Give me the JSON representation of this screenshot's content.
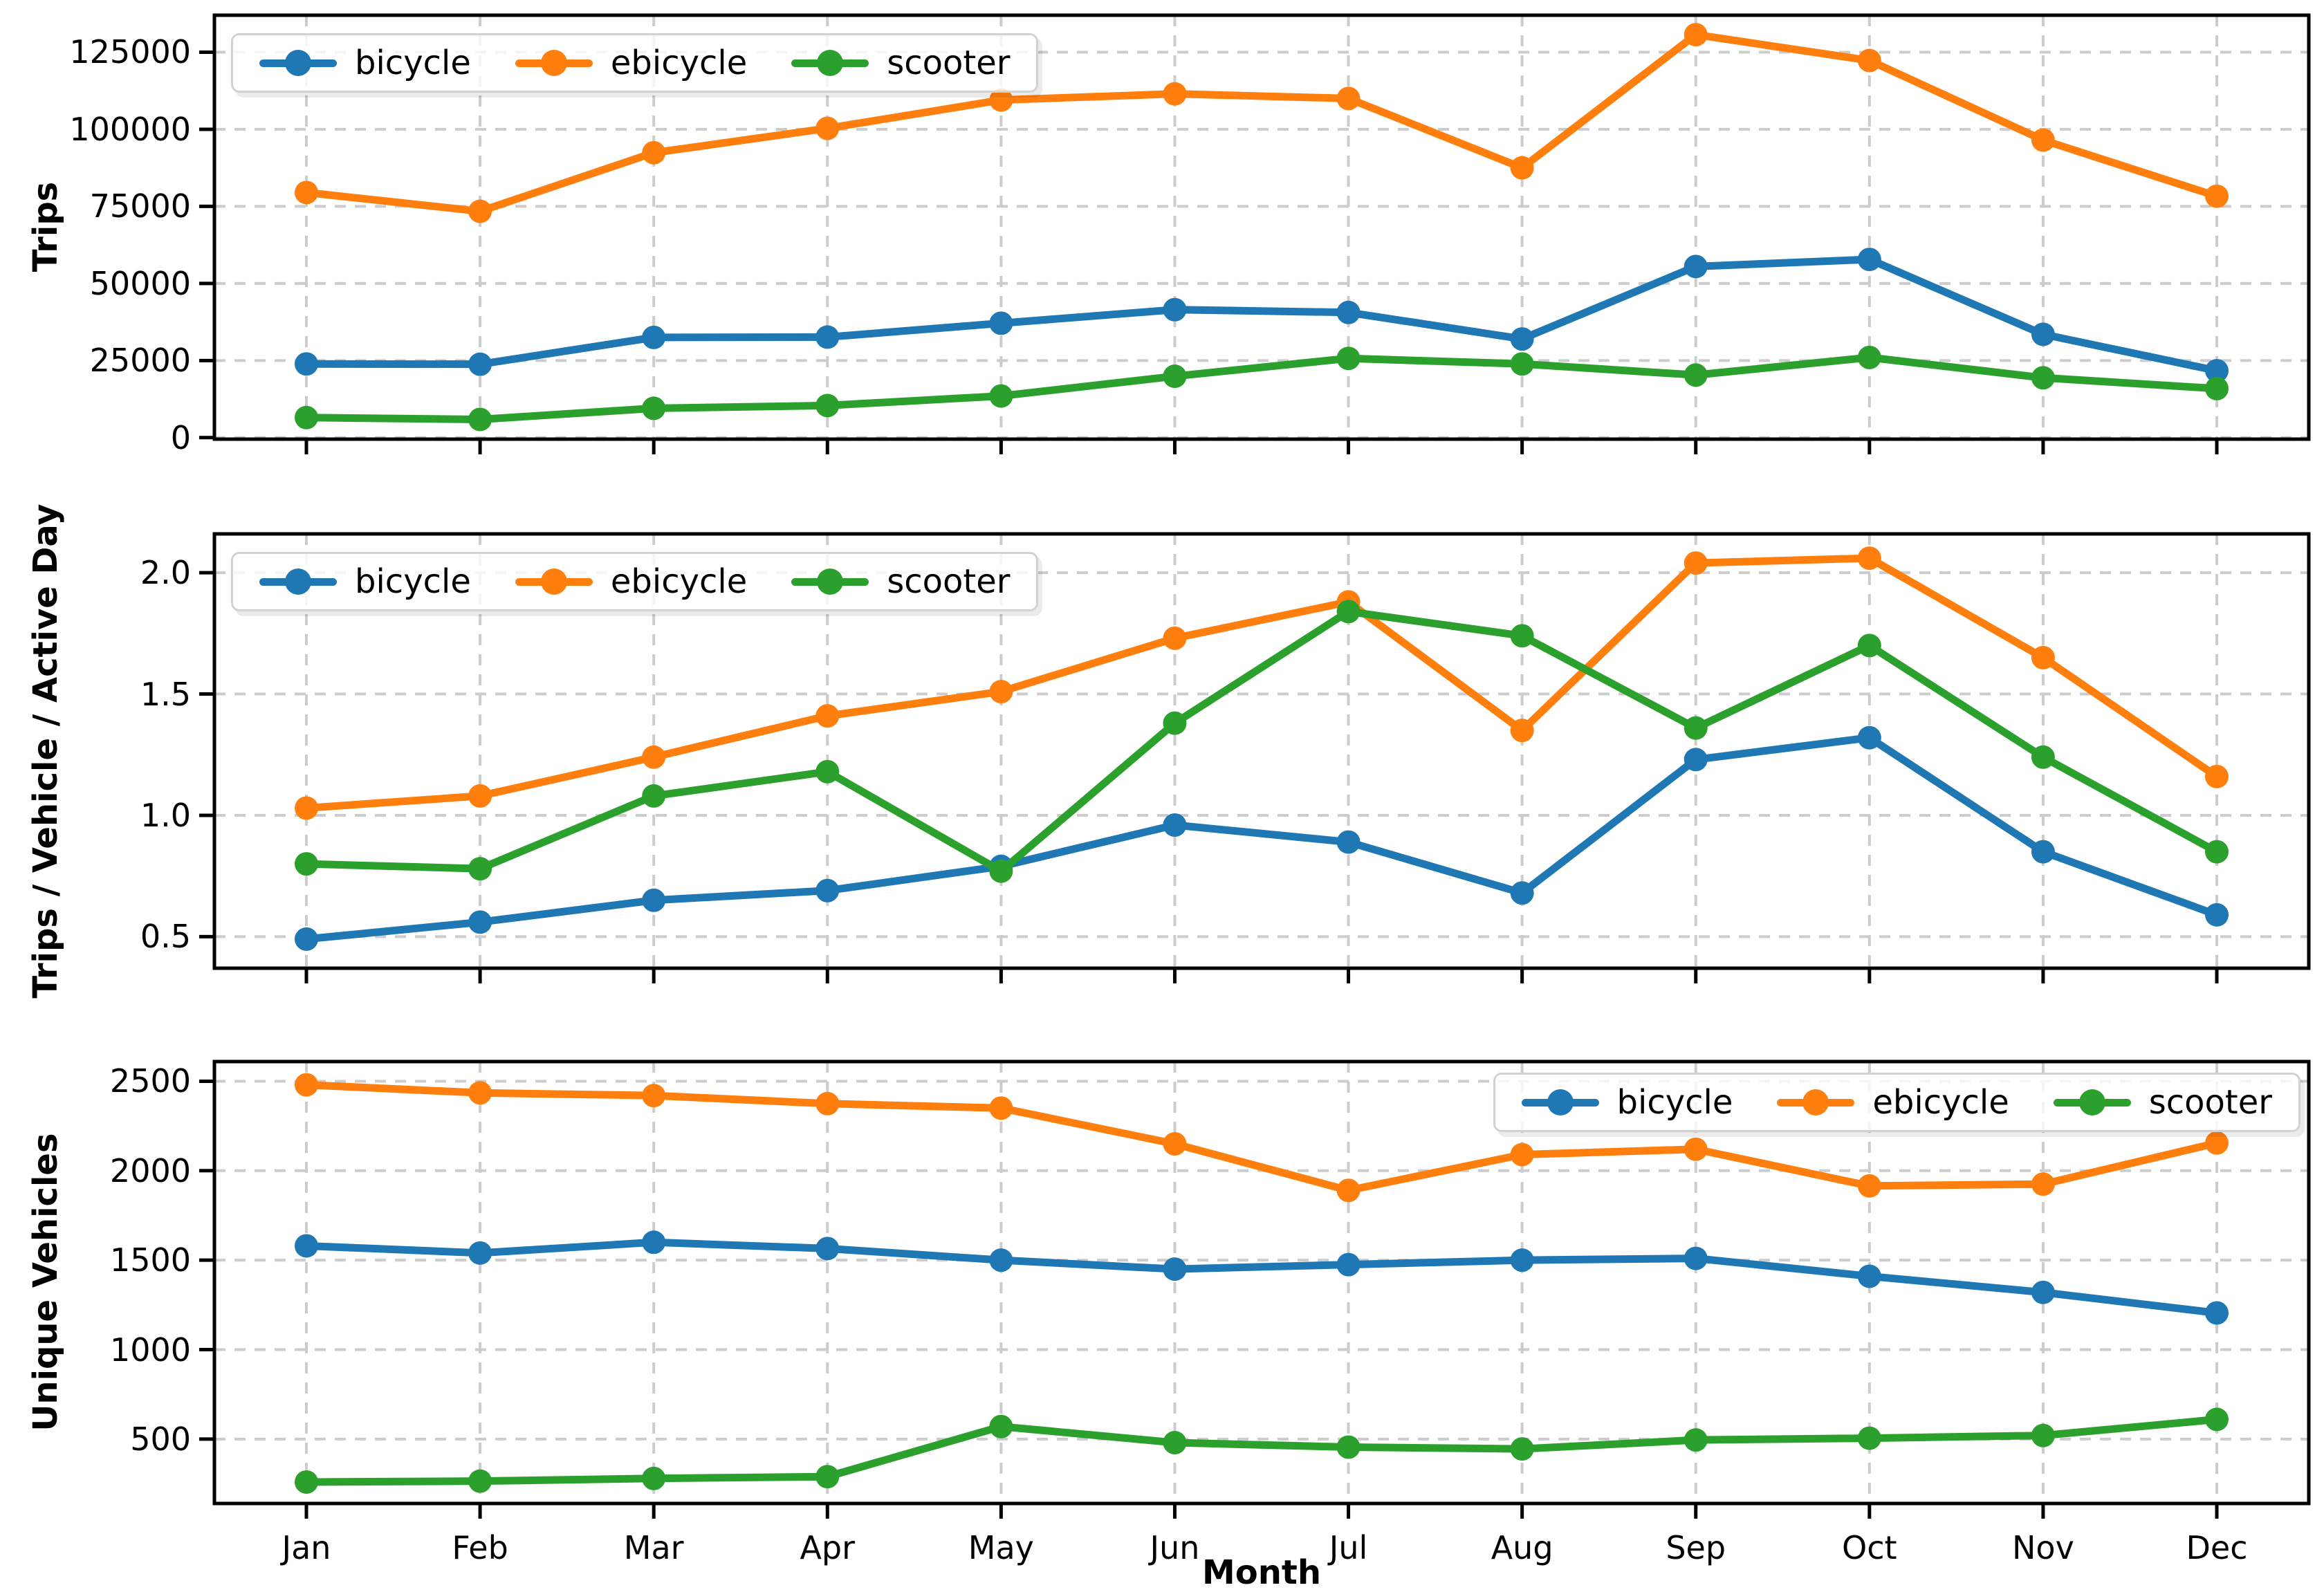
{
  "figure": {
    "background": "#ffffff",
    "axis_color": "#000000",
    "grid_color": "#cccccc"
  },
  "chart_data": [
    {
      "type": "line",
      "title": "",
      "xlabel": "",
      "ylabel": "Trips",
      "grid": true,
      "legend_position": "upper-left",
      "categories": [
        "Jan",
        "Feb",
        "Mar",
        "Apr",
        "May",
        "Jun",
        "Jul",
        "Aug",
        "Sep",
        "Oct",
        "Nov",
        "Dec"
      ],
      "ylim": [
        -500,
        137000
      ],
      "yticks": [
        0,
        25000,
        50000,
        75000,
        100000,
        125000
      ],
      "ytick_labels": [
        "0",
        "25000",
        "50000",
        "75000",
        "100000",
        "125000"
      ],
      "series": [
        {
          "name": "bicycle",
          "color": "#1f77b4",
          "values": [
            23900,
            23800,
            32500,
            32600,
            37100,
            41500,
            40600,
            32000,
            55500,
            57800,
            33500,
            21700
          ]
        },
        {
          "name": "ebicycle",
          "color": "#ff7f0e",
          "values": [
            79500,
            73400,
            92400,
            100300,
            109500,
            111500,
            110000,
            87500,
            130700,
            122300,
            96500,
            78300
          ]
        },
        {
          "name": "scooter",
          "color": "#2ca02c",
          "values": [
            6500,
            5900,
            9500,
            10400,
            13500,
            19900,
            25700,
            23900,
            20300,
            26000,
            19400,
            15900
          ]
        }
      ]
    },
    {
      "type": "line",
      "title": "",
      "xlabel": "",
      "ylabel": "Trips / Vehicle / Active Day",
      "grid": true,
      "legend_position": "upper-left",
      "categories": [
        "Jan",
        "Feb",
        "Mar",
        "Apr",
        "May",
        "Jun",
        "Jul",
        "Aug",
        "Sep",
        "Oct",
        "Nov",
        "Dec"
      ],
      "ylim": [
        0.37,
        2.16
      ],
      "yticks": [
        0.5,
        1.0,
        1.5,
        2.0
      ],
      "ytick_labels": [
        "0.5",
        "1.0",
        "1.5",
        "2.0"
      ],
      "series": [
        {
          "name": "bicycle",
          "color": "#1f77b4",
          "values": [
            0.49,
            0.56,
            0.65,
            0.69,
            0.79,
            0.96,
            0.89,
            0.68,
            1.23,
            1.32,
            0.85,
            0.59
          ]
        },
        {
          "name": "ebicycle",
          "color": "#ff7f0e",
          "values": [
            1.03,
            1.08,
            1.24,
            1.41,
            1.51,
            1.73,
            1.88,
            1.35,
            2.04,
            2.06,
            1.65,
            1.16
          ]
        },
        {
          "name": "scooter",
          "color": "#2ca02c",
          "values": [
            0.8,
            0.78,
            1.08,
            1.18,
            0.77,
            1.38,
            1.84,
            1.74,
            1.36,
            1.7,
            1.24,
            0.85
          ]
        }
      ]
    },
    {
      "type": "line",
      "title": "",
      "xlabel": "Month",
      "ylabel": "Unique Vehicles",
      "grid": true,
      "legend_position": "upper-right",
      "categories": [
        "Jan",
        "Feb",
        "Mar",
        "Apr",
        "May",
        "Jun",
        "Jul",
        "Aug",
        "Sep",
        "Oct",
        "Nov",
        "Dec"
      ],
      "ylim": [
        140,
        2610
      ],
      "yticks": [
        500,
        1000,
        1500,
        2000,
        2500
      ],
      "ytick_labels": [
        "500",
        "1000",
        "1500",
        "2000",
        "2500"
      ],
      "series": [
        {
          "name": "bicycle",
          "color": "#1f77b4",
          "values": [
            1580,
            1540,
            1600,
            1565,
            1500,
            1450,
            1475,
            1500,
            1510,
            1410,
            1320,
            1205
          ]
        },
        {
          "name": "ebicycle",
          "color": "#ff7f0e",
          "values": [
            2480,
            2435,
            2420,
            2375,
            2350,
            2150,
            1890,
            2090,
            2120,
            1915,
            1925,
            2155
          ]
        },
        {
          "name": "scooter",
          "color": "#2ca02c",
          "values": [
            260,
            265,
            280,
            290,
            570,
            480,
            455,
            445,
            495,
            505,
            520,
            610
          ]
        }
      ]
    }
  ]
}
